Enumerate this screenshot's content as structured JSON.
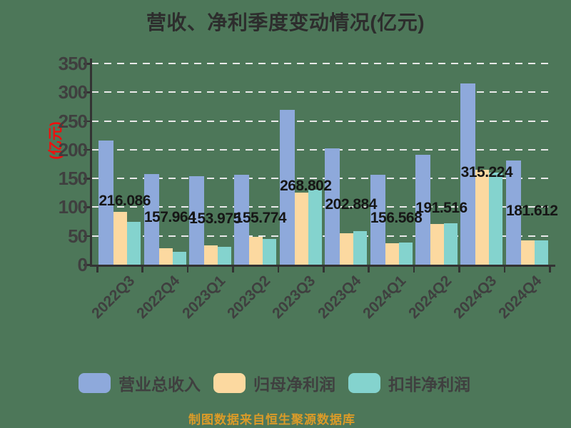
{
  "chart_data": {
    "type": "bar",
    "title": "营收、净利季度变动情况(亿元)",
    "ylabel": "(亿元)",
    "xlabel": "",
    "categories": [
      "2022Q3",
      "2022Q4",
      "2023Q1",
      "2023Q2",
      "2023Q3",
      "2023Q4",
      "2024Q1",
      "2024Q2",
      "2024Q3",
      "2024Q4"
    ],
    "series": [
      {
        "id": "total-revenue",
        "name": "营业总收入",
        "color": "#8EA9DB",
        "values": [
          216.086,
          157.964,
          153.975,
          155.774,
          268.802,
          202.884,
          156.568,
          191.516,
          315.224,
          181.612
        ],
        "labels": [
          "216.086",
          "157.964",
          "153.975",
          "155.774",
          "268.802",
          "202.884",
          "156.568",
          "191.516",
          "315.224",
          "181.612"
        ]
      },
      {
        "id": "net-profit-attributable",
        "name": "归母净利润",
        "color": "#FCD9A0",
        "values": [
          92,
          28,
          33,
          48,
          125,
          55,
          37,
          71,
          165,
          42
        ]
      },
      {
        "id": "non-gaap-net-profit",
        "name": "扣非净利润",
        "color": "#84D3CE",
        "values": [
          74,
          22,
          31,
          45,
          130,
          58,
          38,
          72,
          160,
          42
        ]
      }
    ],
    "ylim": [
      0,
      350
    ],
    "yticks": [
      0,
      50,
      100,
      150,
      200,
      250,
      300,
      350
    ],
    "grid": "horizontal-dashed",
    "legend_position": "bottom",
    "footer": "制图数据来自恒生聚源数据库"
  },
  "colors": {
    "background": "#4D7759",
    "grid": "#E9E9E9",
    "axis": "#333333",
    "axis_text": "#3F3F3F",
    "title_text": "#2D2D2D",
    "value_label_text": "#161616",
    "ylabel_red": "#F40C0C",
    "footer_orange": "#DB9B28"
  }
}
